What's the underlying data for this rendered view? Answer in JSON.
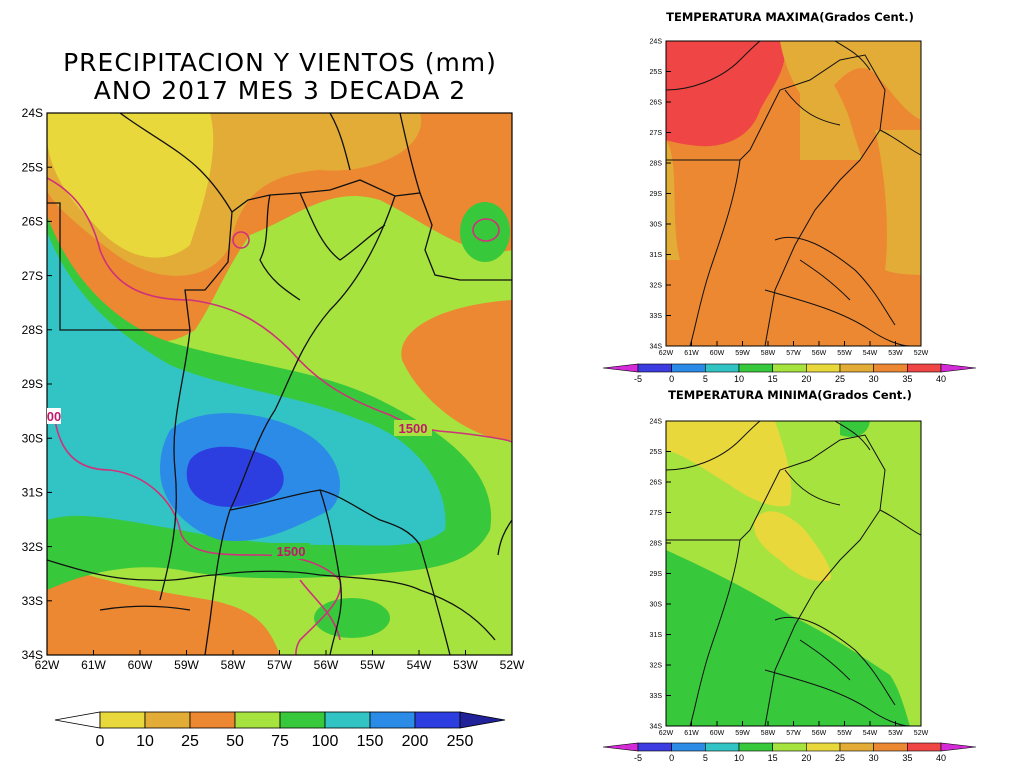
{
  "main_map": {
    "title_line1": "PRECIPITACION Y VIENTOS (mm)",
    "title_line2": "ANO 2017 MES 3 DECADA 2",
    "lat_labels": [
      "24S",
      "25S",
      "26S",
      "27S",
      "28S",
      "29S",
      "30S",
      "31S",
      "32S",
      "33S",
      "34S"
    ],
    "lon_labels": [
      "62W",
      "61W",
      "60W",
      "59W",
      "58W",
      "57W",
      "56W",
      "55W",
      "54W",
      "53W",
      "52W"
    ],
    "contour_labels": [
      "1500",
      "1500",
      "00"
    ],
    "colorbar_labels": [
      "0",
      "10",
      "25",
      "50",
      "75",
      "100",
      "150",
      "200",
      "250"
    ],
    "colorbar_colors": [
      "#ffffff",
      "#e8d83c",
      "#e3ac36",
      "#ec8732",
      "#a6e33e",
      "#38c83c",
      "#32c4c4",
      "#2d8be8",
      "#2d3ee0",
      "#21219a"
    ],
    "contour_color": "#d0317a"
  },
  "tmax_map": {
    "title": "TEMPERATURA MAXIMA(Grados Cent.)",
    "lat_labels": [
      "24S",
      "25S",
      "26S",
      "27S",
      "28S",
      "29S",
      "30S",
      "31S",
      "32S",
      "33S",
      "34S"
    ],
    "lon_labels": [
      "62W",
      "61W",
      "60W",
      "59W",
      "58W",
      "57W",
      "56W",
      "55W",
      "54W",
      "53W",
      "52W"
    ],
    "colorbar_labels": [
      "-5",
      "0",
      "5",
      "10",
      "15",
      "20",
      "25",
      "30",
      "35",
      "40"
    ],
    "colorbar_colors": [
      "#d52ad8",
      "#3c3ce0",
      "#2d8be8",
      "#32c4c4",
      "#38c83c",
      "#a6e33e",
      "#e8d83c",
      "#e3ac36",
      "#ec8732",
      "#ef4545",
      "#d52ad8"
    ]
  },
  "tmin_map": {
    "title": "TEMPERATURA MINIMA(Grados Cent.)",
    "lat_labels": [
      "24S",
      "25S",
      "26S",
      "27S",
      "28S",
      "29S",
      "30S",
      "31S",
      "32S",
      "33S",
      "34S"
    ],
    "lon_labels": [
      "62W",
      "61W",
      "60W",
      "59W",
      "58W",
      "57W",
      "56W",
      "55W",
      "54W",
      "53W",
      "52W"
    ],
    "colorbar_labels": [
      "-5",
      "0",
      "5",
      "10",
      "15",
      "20",
      "25",
      "30",
      "35",
      "40"
    ],
    "colorbar_colors": [
      "#d52ad8",
      "#3c3ce0",
      "#2d8be8",
      "#32c4c4",
      "#38c83c",
      "#a6e33e",
      "#e8d83c",
      "#e3ac36",
      "#ec8732",
      "#ef4545",
      "#d52ad8"
    ]
  }
}
